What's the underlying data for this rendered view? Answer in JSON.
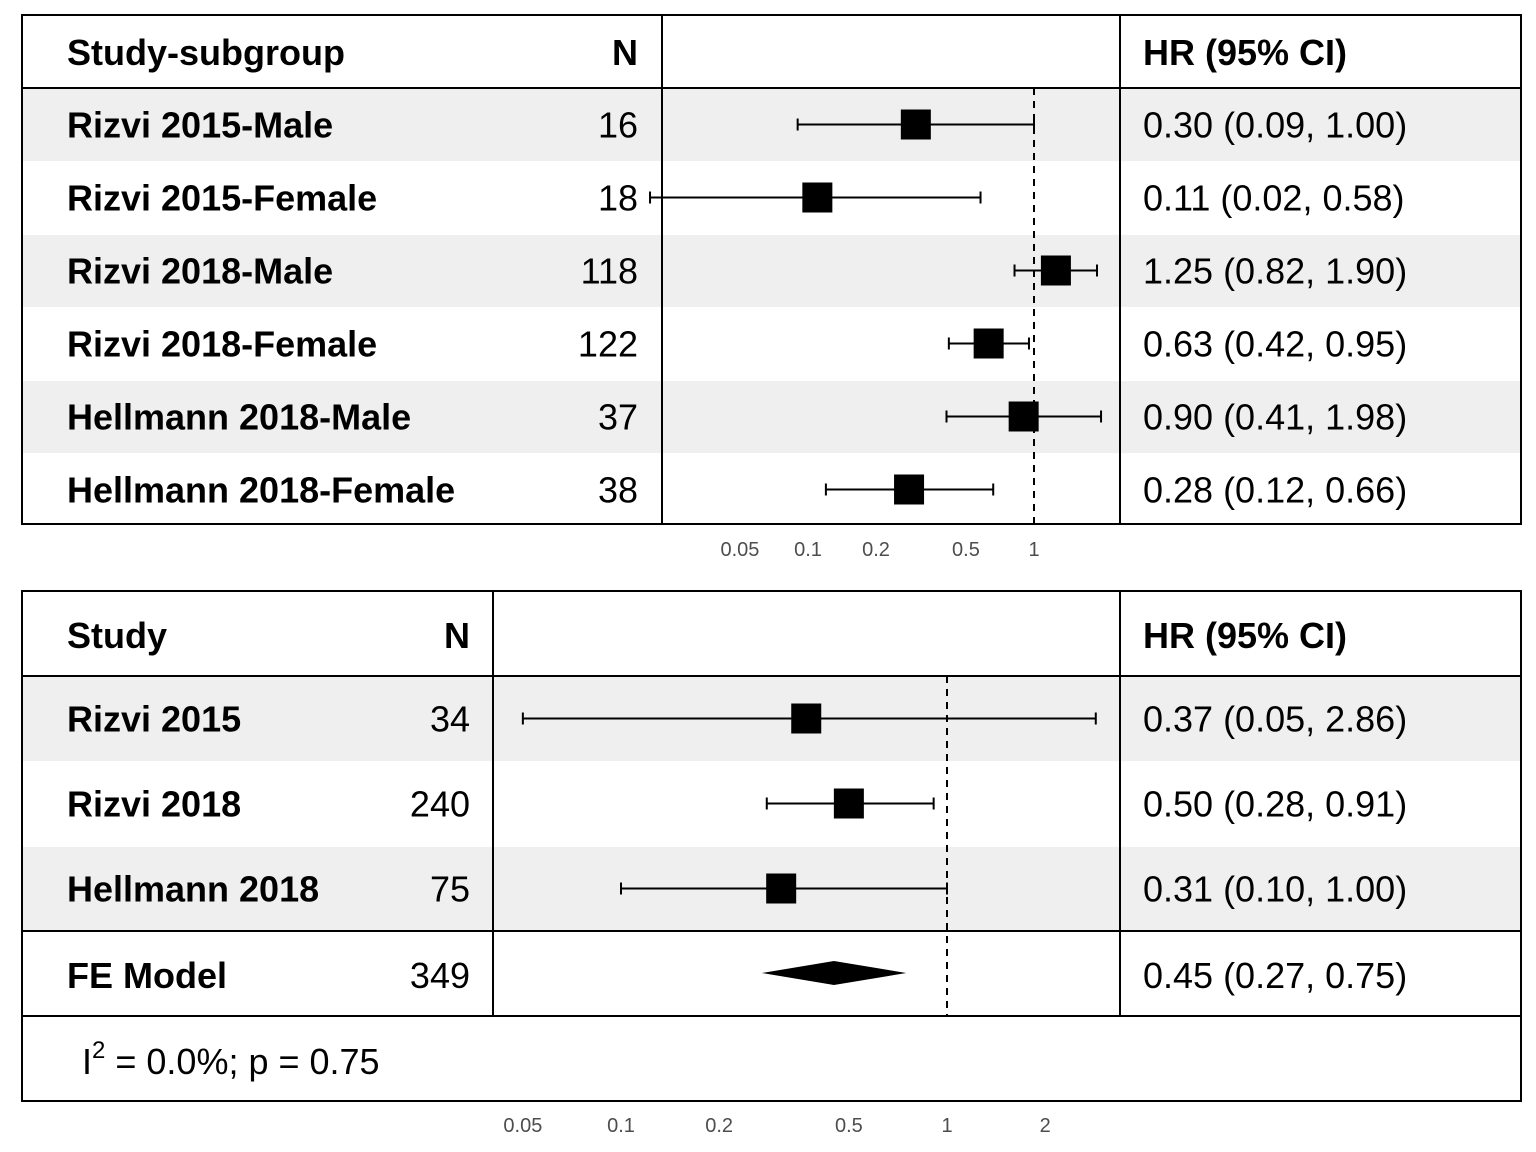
{
  "chart_data": [
    {
      "type": "forest",
      "scale": "log",
      "headers": {
        "label": "Study-subgroup",
        "n": "N",
        "hr": "HR (95% CI)"
      },
      "x_ticks": [
        0.05,
        0.1,
        0.2,
        0.5,
        1
      ],
      "x_tick_labels": [
        "0.05",
        "0.1",
        "0.2",
        "0.5",
        "1"
      ],
      "reference_line": 1,
      "rows": [
        {
          "label": "Rizvi 2015-Male",
          "n": "16",
          "hr": 0.3,
          "lo": 0.09,
          "hi": 1.0,
          "hr_text": "0.30 (0.09, 1.00)"
        },
        {
          "label": "Rizvi 2015-Female",
          "n": "18",
          "hr": 0.11,
          "lo": 0.02,
          "hi": 0.58,
          "hr_text": "0.11 (0.02, 0.58)"
        },
        {
          "label": "Rizvi 2018-Male",
          "n": "118",
          "hr": 1.25,
          "lo": 0.82,
          "hi": 1.9,
          "hr_text": "1.25 (0.82, 1.90)"
        },
        {
          "label": "Rizvi 2018-Female",
          "n": "122",
          "hr": 0.63,
          "lo": 0.42,
          "hi": 0.95,
          "hr_text": "0.63 (0.42, 0.95)"
        },
        {
          "label": "Hellmann 2018-Male",
          "n": "37",
          "hr": 0.9,
          "lo": 0.41,
          "hi": 1.98,
          "hr_text": "0.90 (0.41, 1.98)"
        },
        {
          "label": "Hellmann 2018-Female",
          "n": "38",
          "hr": 0.28,
          "lo": 0.12,
          "hi": 0.66,
          "hr_text": "0.28 (0.12, 0.66)"
        }
      ]
    },
    {
      "type": "forest",
      "scale": "log",
      "headers": {
        "label": "Study",
        "n": "N",
        "hr": "HR (95% CI)"
      },
      "x_ticks": [
        0.05,
        0.1,
        0.2,
        0.5,
        1,
        2
      ],
      "x_tick_labels": [
        "0.05",
        "0.1",
        "0.2",
        "0.5",
        "1",
        "2"
      ],
      "reference_line": 1,
      "rows": [
        {
          "label": "Rizvi 2015",
          "n": "34",
          "hr": 0.37,
          "lo": 0.05,
          "hi": 2.86,
          "hr_text": "0.37 (0.05, 2.86)"
        },
        {
          "label": "Rizvi 2018",
          "n": "240",
          "hr": 0.5,
          "lo": 0.28,
          "hi": 0.91,
          "hr_text": "0.50 (0.28, 0.91)"
        },
        {
          "label": "Hellmann 2018",
          "n": "75",
          "hr": 0.31,
          "lo": 0.1,
          "hi": 1.0,
          "hr_text": "0.31 (0.10, 1.00)"
        }
      ],
      "summary": {
        "label": "FE Model",
        "n": "349",
        "hr": 0.45,
        "lo": 0.27,
        "hi": 0.75,
        "hr_text": "0.45 (0.27, 0.75)"
      },
      "heterogeneity": {
        "prefix": "I",
        "superscript": "2",
        "text": " = 0.0%; p = 0.75"
      }
    }
  ]
}
